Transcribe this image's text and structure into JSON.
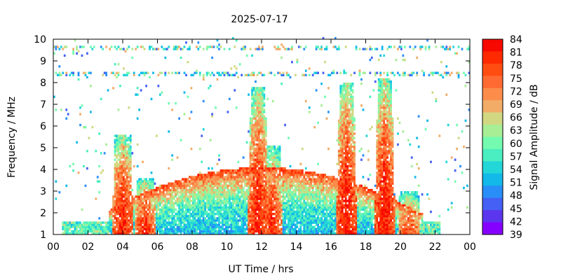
{
  "chart_data": {
    "type": "heatmap",
    "title": "2025-07-17",
    "xlabel": "UT Time / hrs",
    "ylabel": "Frequency / MHz",
    "colorbar_label": "Signal Amplitude / dB",
    "xlim": [
      0,
      24
    ],
    "ylim": [
      1,
      10
    ],
    "x_tick_labels": [
      "00",
      "02",
      "04",
      "06",
      "08",
      "10",
      "12",
      "14",
      "16",
      "18",
      "20",
      "22",
      "00"
    ],
    "y_tick_labels": [
      "1",
      "2",
      "3",
      "4",
      "5",
      "6",
      "7",
      "8",
      "9",
      "10"
    ],
    "colorbar_range": [
      39,
      84
    ],
    "colorbar_tick_labels": [
      "84",
      "81",
      "78",
      "75",
      "72",
      "69",
      "66",
      "63",
      "60",
      "57",
      "54",
      "51",
      "48",
      "45",
      "42",
      "39"
    ],
    "colorbar_colors": [
      "#f70800",
      "#ff2a00",
      "#ff4d12",
      "#ff6a32",
      "#fb8c4a",
      "#f2ac68",
      "#d2d882",
      "#a7ee95",
      "#74fbb0",
      "#4aeec0",
      "#23d6d8",
      "#12b9e9",
      "#2a8ef8",
      "#4560f5",
      "#5c36ee",
      "#8600ff"
    ],
    "grid": false,
    "features": [
      {
        "x": 4.0,
        "y": [
          1.0,
          5.6
        ],
        "value": 82
      },
      {
        "x": 5.3,
        "y": [
          1.0,
          3.6
        ],
        "value": 80
      },
      {
        "x": 11.8,
        "y": [
          1.0,
          7.8
        ],
        "value": 82
      },
      {
        "x": 12.6,
        "y": [
          1.0,
          5.1
        ],
        "value": 80
      },
      {
        "x": 16.9,
        "y": [
          1.0,
          8.0
        ],
        "value": 83
      },
      {
        "x": 19.1,
        "y": [
          1.0,
          8.2
        ],
        "value": 83
      },
      {
        "x": 20.5,
        "y": [
          1.0,
          3.0
        ],
        "value": 78
      }
    ],
    "daytime_band": {
      "start": 3.2,
      "end": 21.3,
      "peak": 12.0,
      "peak_top_mhz": 4.1,
      "value": 62
    },
    "persistent_lines_mhz": [
      8.4,
      9.6
    ]
  }
}
